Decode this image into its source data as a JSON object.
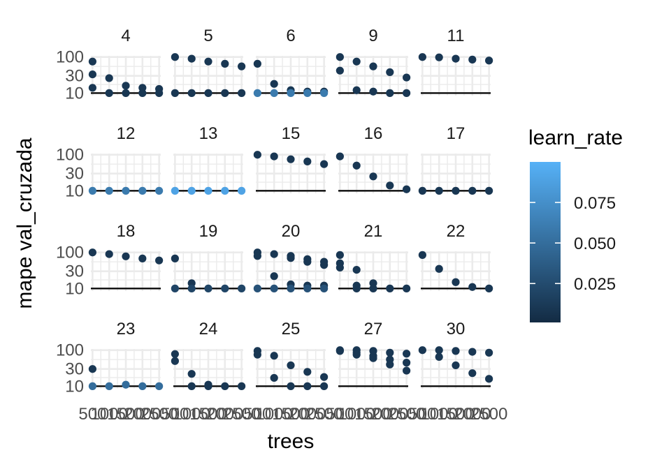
{
  "chart_data": {
    "type": "scatter",
    "facet_by": "model",
    "facets": [
      {
        "label": "4",
        "points": [
          [
            500,
            75,
            0.01
          ],
          [
            500,
            33,
            0.01
          ],
          [
            500,
            14,
            0.01
          ],
          [
            1000,
            26,
            0.01
          ],
          [
            1000,
            10,
            0.01
          ],
          [
            1500,
            16,
            0.01
          ],
          [
            1500,
            10,
            0.01
          ],
          [
            2000,
            14,
            0.01
          ],
          [
            2000,
            10,
            0.01
          ],
          [
            2500,
            13,
            0.01
          ],
          [
            2500,
            10,
            0.01
          ]
        ]
      },
      {
        "label": "5",
        "points": [
          [
            500,
            100,
            0.01
          ],
          [
            500,
            10,
            0.01
          ],
          [
            1000,
            90,
            0.01
          ],
          [
            1000,
            10,
            0.01
          ],
          [
            1500,
            75,
            0.01
          ],
          [
            1500,
            10,
            0.01
          ],
          [
            2000,
            65,
            0.01
          ],
          [
            2000,
            10,
            0.01
          ],
          [
            2500,
            55,
            0.01
          ],
          [
            2500,
            10,
            0.01
          ]
        ]
      },
      {
        "label": "6",
        "points": [
          [
            500,
            65,
            0.01
          ],
          [
            500,
            10,
            0.06
          ],
          [
            1000,
            18,
            0.01
          ],
          [
            1000,
            10,
            0.06
          ],
          [
            1500,
            12,
            0.01
          ],
          [
            1500,
            10,
            0.06
          ],
          [
            2000,
            11,
            0.01
          ],
          [
            2000,
            10,
            0.06
          ],
          [
            2500,
            11,
            0.01
          ],
          [
            2500,
            10,
            0.06
          ]
        ]
      },
      {
        "label": "9",
        "points": [
          [
            500,
            100,
            0.01
          ],
          [
            500,
            42,
            0.01
          ],
          [
            1000,
            75,
            0.01
          ],
          [
            1000,
            12,
            0.01
          ],
          [
            1500,
            55,
            0.01
          ],
          [
            1500,
            11,
            0.01
          ],
          [
            2000,
            38,
            0.01
          ],
          [
            2000,
            10,
            0.01
          ],
          [
            2500,
            27,
            0.01
          ],
          [
            2500,
            10,
            0.01
          ]
        ]
      },
      {
        "label": "11",
        "points": [
          [
            500,
            100,
            0.01
          ],
          [
            1000,
            98,
            0.01
          ],
          [
            1500,
            90,
            0.01
          ],
          [
            2000,
            85,
            0.01
          ],
          [
            2500,
            80,
            0.01
          ]
        ]
      },
      {
        "label": "12",
        "points": [
          [
            500,
            10,
            0.06
          ],
          [
            1000,
            10,
            0.06
          ],
          [
            1500,
            10,
            0.06
          ],
          [
            2000,
            10,
            0.06
          ],
          [
            2500,
            10,
            0.06
          ]
        ]
      },
      {
        "label": "13",
        "points": [
          [
            500,
            10,
            0.09
          ],
          [
            1000,
            10,
            0.09
          ],
          [
            1500,
            10,
            0.09
          ],
          [
            2000,
            10,
            0.09
          ],
          [
            2500,
            10,
            0.09
          ]
        ]
      },
      {
        "label": "15",
        "points": [
          [
            500,
            100,
            0.01
          ],
          [
            1000,
            90,
            0.01
          ],
          [
            1500,
            75,
            0.01
          ],
          [
            2000,
            65,
            0.01
          ],
          [
            2500,
            55,
            0.01
          ]
        ]
      },
      {
        "label": "16",
        "points": [
          [
            500,
            90,
            0.01
          ],
          [
            1000,
            50,
            0.01
          ],
          [
            1500,
            25,
            0.01
          ],
          [
            2000,
            14,
            0.01
          ],
          [
            2500,
            11,
            0.01
          ]
        ]
      },
      {
        "label": "17",
        "points": [
          [
            500,
            10,
            0.01
          ],
          [
            1000,
            10,
            0.01
          ],
          [
            1500,
            10,
            0.01
          ],
          [
            2000,
            10,
            0.01
          ],
          [
            2500,
            10,
            0.01
          ]
        ]
      },
      {
        "label": "18",
        "points": [
          [
            500,
            100,
            0.01
          ],
          [
            1000,
            90,
            0.01
          ],
          [
            1500,
            78,
            0.01
          ],
          [
            2000,
            68,
            0.01
          ],
          [
            2500,
            60,
            0.01
          ]
        ]
      },
      {
        "label": "19",
        "points": [
          [
            500,
            68,
            0.01
          ],
          [
            500,
            10,
            0.02
          ],
          [
            1000,
            14,
            0.01
          ],
          [
            1000,
            10,
            0.02
          ],
          [
            1500,
            10,
            0.02
          ],
          [
            2000,
            10,
            0.02
          ],
          [
            2500,
            10,
            0.02
          ]
        ]
      },
      {
        "label": "20",
        "points": [
          [
            500,
            100,
            0.01
          ],
          [
            500,
            80,
            0.01
          ],
          [
            500,
            10,
            0.03
          ],
          [
            1000,
            90,
            0.01
          ],
          [
            1000,
            22,
            0.01
          ],
          [
            1000,
            10,
            0.03
          ],
          [
            1500,
            80,
            0.01
          ],
          [
            1500,
            70,
            0.01
          ],
          [
            1500,
            13,
            0.01
          ],
          [
            1500,
            10,
            0.03
          ],
          [
            2000,
            65,
            0.01
          ],
          [
            2000,
            55,
            0.01
          ],
          [
            2000,
            12,
            0.01
          ],
          [
            2000,
            10,
            0.03
          ],
          [
            2500,
            55,
            0.01
          ],
          [
            2500,
            45,
            0.01
          ],
          [
            2500,
            12,
            0.01
          ],
          [
            2500,
            10,
            0.03
          ]
        ]
      },
      {
        "label": "21",
        "points": [
          [
            500,
            85,
            0.01
          ],
          [
            500,
            50,
            0.01
          ],
          [
            500,
            38,
            0.01
          ],
          [
            1000,
            33,
            0.01
          ],
          [
            1000,
            12,
            0.01
          ],
          [
            1000,
            10,
            0.01
          ],
          [
            1500,
            14,
            0.01
          ],
          [
            1500,
            10,
            0.01
          ],
          [
            2000,
            10,
            0.01
          ],
          [
            2500,
            10,
            0.01
          ]
        ]
      },
      {
        "label": "22",
        "points": [
          [
            500,
            85,
            0.01
          ],
          [
            1000,
            35,
            0.01
          ],
          [
            1500,
            15,
            0.01
          ],
          [
            2000,
            11,
            0.01
          ],
          [
            2500,
            10,
            0.01
          ]
        ]
      },
      {
        "label": "23",
        "points": [
          [
            500,
            30,
            0.01
          ],
          [
            500,
            10,
            0.05
          ],
          [
            1000,
            10,
            0.05
          ],
          [
            1500,
            11,
            0.05
          ],
          [
            2000,
            10,
            0.05
          ],
          [
            2500,
            10,
            0.05
          ]
        ]
      },
      {
        "label": "24",
        "points": [
          [
            500,
            78,
            0.01
          ],
          [
            500,
            50,
            0.01
          ],
          [
            1000,
            22,
            0.01
          ],
          [
            1000,
            10,
            0.01
          ],
          [
            1500,
            11,
            0.01
          ],
          [
            1500,
            10,
            0.01
          ],
          [
            2000,
            10,
            0.01
          ],
          [
            2500,
            10,
            0.01
          ]
        ]
      },
      {
        "label": "25",
        "points": [
          [
            500,
            95,
            0.01
          ],
          [
            500,
            75,
            0.01
          ],
          [
            1000,
            70,
            0.01
          ],
          [
            1000,
            17,
            0.01
          ],
          [
            1500,
            38,
            0.01
          ],
          [
            1500,
            10,
            0.01
          ],
          [
            2000,
            25,
            0.01
          ],
          [
            2000,
            10,
            0.01
          ],
          [
            2500,
            18,
            0.01
          ],
          [
            2500,
            10,
            0.01
          ]
        ]
      },
      {
        "label": "27",
        "points": [
          [
            500,
            100,
            0.01
          ],
          [
            500,
            95,
            0.01
          ],
          [
            1000,
            100,
            0.01
          ],
          [
            1000,
            85,
            0.01
          ],
          [
            1000,
            75,
            0.01
          ],
          [
            1500,
            95,
            0.01
          ],
          [
            1500,
            70,
            0.01
          ],
          [
            1500,
            60,
            0.01
          ],
          [
            2000,
            85,
            0.01
          ],
          [
            2000,
            55,
            0.01
          ],
          [
            2000,
            40,
            0.01
          ],
          [
            2500,
            80,
            0.01
          ],
          [
            2500,
            45,
            0.01
          ],
          [
            2500,
            27,
            0.01
          ]
        ]
      },
      {
        "label": "30",
        "points": [
          [
            500,
            100,
            0.01
          ],
          [
            1000,
            100,
            0.01
          ],
          [
            1000,
            65,
            0.01
          ],
          [
            1500,
            95,
            0.01
          ],
          [
            1500,
            38,
            0.01
          ],
          [
            2000,
            90,
            0.01
          ],
          [
            2000,
            23,
            0.01
          ],
          [
            2500,
            85,
            0.01
          ],
          [
            2500,
            16,
            0.01
          ]
        ]
      }
    ],
    "xlabel": "trees",
    "ylabel": "mape val_cruzada",
    "x_ticks": [
      500,
      1000,
      1500,
      2000,
      2500
    ],
    "x_tick_labels": [
      "500",
      "1000",
      "1500",
      "2000",
      "2500"
    ],
    "xlim": [
      450,
      2550
    ],
    "y_scale": "log",
    "y_ticks": [
      10,
      30,
      100
    ],
    "y_tick_labels": [
      "10",
      "30",
      "100"
    ],
    "ylim": [
      8.5,
      108
    ],
    "reference_line_y": 10,
    "color_by": "learn_rate",
    "legend_title": "learn_rate",
    "legend_ticks": [
      0.025,
      0.05,
      0.075
    ],
    "legend_tick_labels": [
      "0.025",
      "0.050",
      "0.075"
    ],
    "legend_range": [
      0.001,
      0.1
    ],
    "legend_placement": "right",
    "color_low": "#132B43",
    "color_high": "#56B1F7",
    "grid": true,
    "grid_color": "#ebebeb",
    "reference_line_color": "#000000",
    "theme": "minimal"
  }
}
